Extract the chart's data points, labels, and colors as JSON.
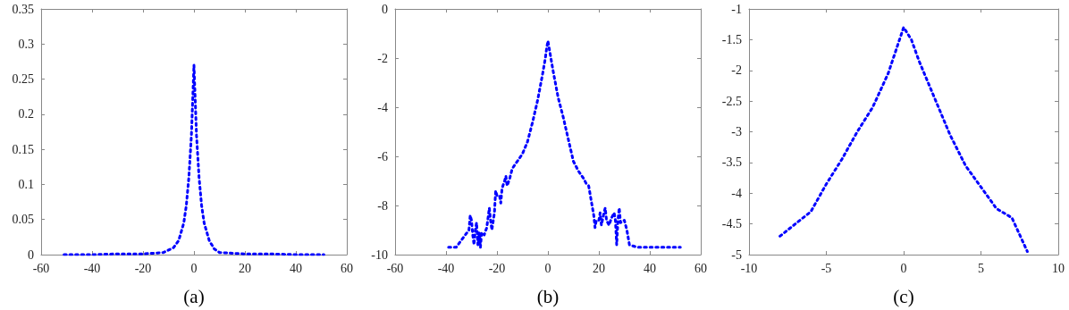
{
  "chart_data": [
    {
      "type": "line",
      "xlabel": "(a)",
      "xlim": [
        -60,
        60
      ],
      "xticks": [
        -60,
        -40,
        -20,
        0,
        20,
        40,
        60
      ],
      "ylim": [
        0,
        0.35
      ],
      "yticks": [
        0,
        0.05,
        0.1,
        0.15,
        0.2,
        0.25,
        0.3,
        0.35
      ],
      "grid": false,
      "marker": "none",
      "line_style": "dotted",
      "series": [
        {
          "color": "#0000ff",
          "x": [
            -51,
            -40,
            -30,
            -20,
            -12,
            -8,
            -6,
            -4,
            -3,
            -2,
            -1,
            -0.5,
            0,
            0.5,
            1,
            2,
            3,
            4,
            6,
            8,
            10,
            20,
            30,
            40,
            51
          ],
          "values": [
            0,
            0,
            0.001,
            0.001,
            0.003,
            0.01,
            0.02,
            0.045,
            0.07,
            0.11,
            0.17,
            0.22,
            0.27,
            0.22,
            0.17,
            0.11,
            0.07,
            0.045,
            0.02,
            0.008,
            0.003,
            0.001,
            0.001,
            0,
            0
          ]
        }
      ]
    },
    {
      "type": "line",
      "xlabel": "(b)",
      "xlim": [
        -60,
        60
      ],
      "xticks": [
        -60,
        -40,
        -20,
        0,
        20,
        40,
        60
      ],
      "ylim": [
        -10,
        0
      ],
      "yticks": [
        -10,
        -8,
        -6,
        -4,
        -2,
        0
      ],
      "grid": false,
      "marker": "none",
      "line_style": "dotted",
      "series": [
        {
          "color": "#0000ff",
          "x": [
            -39,
            -36,
            -31,
            -30.5,
            -30,
            -29.5,
            -29,
            -28.5,
            -28,
            -27.5,
            -27,
            -26.5,
            -26,
            -25,
            -24,
            -23,
            -22.5,
            -22,
            -21,
            -20.5,
            -20,
            -19,
            -18.5,
            -18,
            -17,
            -16.5,
            -16,
            -15,
            -14,
            -12,
            -10,
            -8,
            -6,
            -4,
            -2,
            -1,
            -0.5,
            0,
            0.5,
            1,
            2,
            4,
            6,
            8,
            10,
            12,
            14,
            15,
            16,
            17,
            18,
            18.5,
            19,
            20,
            20.5,
            21,
            22,
            22.5,
            23,
            24,
            25,
            26,
            26.5,
            27,
            27.5,
            28,
            28.5,
            30,
            31,
            32,
            35,
            43.5,
            52
          ],
          "values": [
            -9.7,
            -9.7,
            -9.0,
            -8.4,
            -8.6,
            -9.2,
            -9.6,
            -9.0,
            -8.7,
            -9.6,
            -9.1,
            -9.7,
            -9.1,
            -9.2,
            -8.9,
            -8.1,
            -8.6,
            -9.0,
            -8.3,
            -7.4,
            -7.6,
            -7.6,
            -7.9,
            -7.3,
            -7.0,
            -6.8,
            -7.2,
            -6.9,
            -6.5,
            -6.2,
            -5.9,
            -5.4,
            -4.6,
            -3.7,
            -2.6,
            -2.0,
            -1.6,
            -1.3,
            -1.6,
            -1.9,
            -2.5,
            -3.6,
            -4.4,
            -5.3,
            -6.2,
            -6.6,
            -6.9,
            -7.1,
            -7.2,
            -7.8,
            -8.4,
            -8.9,
            -8.6,
            -8.6,
            -8.3,
            -8.8,
            -8.3,
            -8.1,
            -8.6,
            -8.8,
            -8.5,
            -8.3,
            -8.6,
            -9.6,
            -8.6,
            -8.1,
            -8.7,
            -8.6,
            -9.0,
            -9.6,
            -9.7,
            -9.7,
            -9.7
          ]
        }
      ]
    },
    {
      "type": "line",
      "xlabel": "(c)",
      "xlim": [
        -10,
        10
      ],
      "xticks": [
        -10,
        -5,
        0,
        5,
        10
      ],
      "ylim": [
        -5,
        -1
      ],
      "yticks": [
        -5,
        -4.5,
        -4,
        -3.5,
        -3,
        -2.5,
        -2,
        -1.5,
        -1
      ],
      "grid": false,
      "marker": "none",
      "line_style": "dotted",
      "series": [
        {
          "color": "#0000ff",
          "x": [
            -8,
            -6,
            -5,
            -4,
            -3,
            -2,
            -1,
            0,
            0.5,
            1,
            2,
            3,
            4,
            5,
            6,
            7,
            8
          ],
          "values": [
            -4.7,
            -4.3,
            -3.85,
            -3.45,
            -3.0,
            -2.6,
            -2.05,
            -1.3,
            -1.5,
            -1.85,
            -2.45,
            -3.05,
            -3.55,
            -3.9,
            -4.25,
            -4.4,
            -4.95
          ]
        }
      ]
    }
  ]
}
